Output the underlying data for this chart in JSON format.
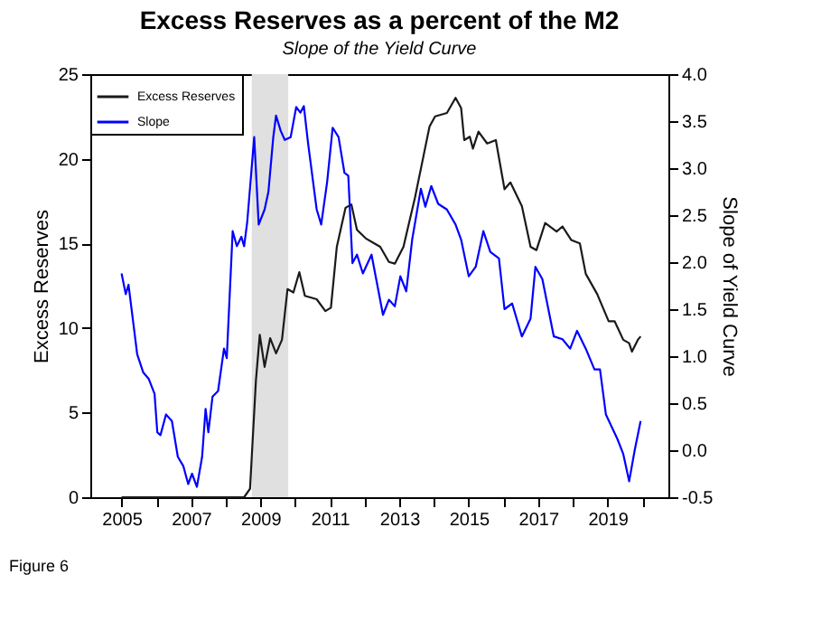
{
  "chart_data": {
    "type": "line",
    "title": "Excess Reserves as a percent of the M2",
    "subtitle": "Slope of the Yield Curve",
    "ylabel": "Excess Reserves",
    "y2label": "Slope of Yield Curve",
    "annotations": [
      "Figure 6"
    ],
    "xlim": [
      2004.1,
      2020.75
    ],
    "xticks": [
      {
        "value": 2005,
        "label": "2005"
      },
      {
        "value": 2006,
        "label": null
      },
      {
        "value": 2007,
        "label": "2007"
      },
      {
        "value": 2008,
        "label": null
      },
      {
        "value": 2009,
        "label": "2009"
      },
      {
        "value": 2010,
        "label": null
      },
      {
        "value": 2011,
        "label": "2011"
      },
      {
        "value": 2012,
        "label": null
      },
      {
        "value": 2013,
        "label": "2013"
      },
      {
        "value": 2014,
        "label": null
      },
      {
        "value": 2015,
        "label": "2015"
      },
      {
        "value": 2016,
        "label": null
      },
      {
        "value": 2017,
        "label": "2017"
      },
      {
        "value": 2018,
        "label": null
      },
      {
        "value": 2019,
        "label": "2019"
      },
      {
        "value": 2020,
        "label": null
      }
    ],
    "ylim": [
      0,
      25
    ],
    "yticks": [
      0,
      5,
      10,
      15,
      20,
      25
    ],
    "y2lim": [
      -0.5,
      4.0
    ],
    "y2ticks": [
      {
        "value": -0.5,
        "label": "-0.5"
      },
      {
        "value": 0,
        "label": "0.0"
      },
      {
        "value": 0.5,
        "label": "0.5"
      },
      {
        "value": 1,
        "label": "1.0"
      },
      {
        "value": 1.5,
        "label": "1.5"
      },
      {
        "value": 2,
        "label": "2.0"
      },
      {
        "value": 2.5,
        "label": "2.5"
      },
      {
        "value": 3,
        "label": "3.0"
      },
      {
        "value": 3.5,
        "label": "3.5"
      },
      {
        "value": 4,
        "label": "4.0"
      }
    ],
    "bands": [
      {
        "axis": "x",
        "from": 2008.75,
        "to": 2009.8,
        "color": "#e0e0e0"
      }
    ],
    "grid": false,
    "legend": "top left",
    "marker": "none",
    "line_style": "solid",
    "series": [
      {
        "name": "Excess Reserves",
        "color": "#1a1a1a",
        "x": [
          2005.0,
          2008.53,
          2008.7,
          2008.87,
          2008.98,
          2009.12,
          2009.28,
          2009.45,
          2009.62,
          2009.78,
          2009.95,
          2010.12,
          2010.28,
          2010.62,
          2010.87,
          2011.03,
          2011.2,
          2011.45,
          2011.62,
          2011.78,
          2012.03,
          2012.28,
          2012.45,
          2012.7,
          2012.87,
          2013.12,
          2013.45,
          2013.7,
          2013.87,
          2014.03,
          2014.37,
          2014.62,
          2014.78,
          2014.87,
          2015.03,
          2015.12,
          2015.28,
          2015.53,
          2015.78,
          2016.03,
          2016.2,
          2016.53,
          2016.78,
          2016.95,
          2017.2,
          2017.53,
          2017.7,
          2017.95,
          2018.2,
          2018.37,
          2018.7,
          2019.03,
          2019.2,
          2019.45,
          2019.62,
          2019.7,
          2019.87,
          2019.95
        ],
        "values": [
          0,
          0,
          0.5,
          6.9,
          9.6,
          7.7,
          9.4,
          8.5,
          9.3,
          12.3,
          12.1,
          13.3,
          11.9,
          11.7,
          11.0,
          11.2,
          14.8,
          17.1,
          17.3,
          15.8,
          15.3,
          15.0,
          14.8,
          13.9,
          13.8,
          14.8,
          17.7,
          20.2,
          21.9,
          22.5,
          22.7,
          23.6,
          23.0,
          21.1,
          21.3,
          20.6,
          21.6,
          20.9,
          21.1,
          18.2,
          18.6,
          17.2,
          14.8,
          14.6,
          16.2,
          15.7,
          16.0,
          15.2,
          15.0,
          13.2,
          12.0,
          10.4,
          10.4,
          9.3,
          9.1,
          8.6,
          9.3,
          9.5
        ]
      },
      {
        "name": "Slope",
        "color": "#0000ff",
        "axis": "y2",
        "x": [
          2005.0,
          2005.12,
          2005.2,
          2005.45,
          2005.62,
          2005.78,
          2005.95,
          2006.03,
          2006.12,
          2006.28,
          2006.45,
          2006.62,
          2006.78,
          2006.92,
          2007.03,
          2007.17,
          2007.32,
          2007.42,
          2007.5,
          2007.62,
          2007.78,
          2007.95,
          2008.03,
          2008.2,
          2008.32,
          2008.45,
          2008.53,
          2008.62,
          2008.82,
          2008.95,
          2009.12,
          2009.23,
          2009.37,
          2009.45,
          2009.58,
          2009.7,
          2009.87,
          2010.03,
          2010.15,
          2010.25,
          2010.37,
          2010.62,
          2010.75,
          2010.92,
          2011.08,
          2011.25,
          2011.42,
          2011.53,
          2011.65,
          2011.78,
          2011.95,
          2012.2,
          2012.53,
          2012.7,
          2012.87,
          2013.03,
          2013.2,
          2013.37,
          2013.62,
          2013.75,
          2013.92,
          2014.12,
          2014.37,
          2014.62,
          2014.78,
          2015.0,
          2015.2,
          2015.42,
          2015.62,
          2015.87,
          2016.03,
          2016.25,
          2016.53,
          2016.78,
          2016.92,
          2017.12,
          2017.45,
          2017.7,
          2017.92,
          2018.12,
          2018.37,
          2018.62,
          2018.78,
          2018.95,
          2019.28,
          2019.45,
          2019.62,
          2019.78,
          2019.95
        ],
        "values": [
          1.88,
          1.66,
          1.76,
          1.02,
          0.83,
          0.76,
          0.6,
          0.19,
          0.16,
          0.38,
          0.31,
          -0.07,
          -0.17,
          -0.36,
          -0.25,
          -0.39,
          -0.07,
          0.44,
          0.19,
          0.57,
          0.63,
          1.08,
          0.98,
          2.33,
          2.17,
          2.27,
          2.17,
          2.43,
          3.33,
          2.4,
          2.56,
          2.75,
          3.33,
          3.56,
          3.4,
          3.3,
          3.33,
          3.65,
          3.59,
          3.66,
          3.27,
          2.56,
          2.4,
          2.85,
          3.43,
          3.33,
          2.95,
          2.92,
          1.99,
          2.08,
          1.88,
          2.08,
          1.44,
          1.6,
          1.53,
          1.85,
          1.69,
          2.24,
          2.78,
          2.59,
          2.81,
          2.62,
          2.56,
          2.4,
          2.24,
          1.85,
          1.95,
          2.33,
          2.11,
          2.04,
          1.5,
          1.56,
          1.21,
          1.4,
          1.95,
          1.82,
          1.21,
          1.18,
          1.08,
          1.27,
          1.08,
          0.86,
          0.86,
          0.38,
          0.12,
          -0.04,
          -0.33,
          0.0,
          0.31
        ]
      }
    ]
  }
}
